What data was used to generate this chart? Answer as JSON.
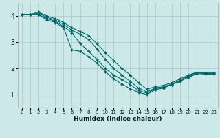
{
  "xlabel": "Humidex (Indice chaleur)",
  "ylabel": "",
  "bg_color": "#cce8e8",
  "grid_color": "#b0cccc",
  "line_color": "#006868",
  "xlim": [
    -0.5,
    23.5
  ],
  "ylim": [
    0.5,
    4.5
  ],
  "yticks": [
    1,
    2,
    3,
    4
  ],
  "xticks": [
    0,
    1,
    2,
    3,
    4,
    5,
    6,
    7,
    8,
    9,
    10,
    11,
    12,
    13,
    14,
    15,
    16,
    17,
    18,
    19,
    20,
    21,
    22,
    23
  ],
  "lines": [
    {
      "x": [
        0,
        1,
        2,
        3,
        4,
        5,
        6,
        7,
        8,
        9,
        10,
        11,
        12,
        13,
        14,
        15,
        16,
        17,
        18,
        19,
        20,
        21,
        22,
        23
      ],
      "y": [
        4.05,
        4.05,
        4.15,
        4.0,
        3.9,
        3.75,
        3.55,
        3.4,
        3.25,
        2.95,
        2.6,
        2.3,
        2.0,
        1.75,
        1.45,
        1.2,
        1.3,
        1.35,
        1.45,
        1.6,
        1.75,
        1.85,
        1.85,
        1.85
      ]
    },
    {
      "x": [
        0,
        1,
        2,
        3,
        4,
        5,
        6,
        7,
        8,
        9,
        10,
        11,
        12,
        13,
        14,
        15,
        16,
        17,
        18,
        19,
        20,
        21,
        22,
        23
      ],
      "y": [
        4.05,
        4.05,
        4.1,
        3.95,
        3.85,
        3.68,
        3.45,
        3.3,
        3.1,
        2.75,
        2.35,
        2.0,
        1.75,
        1.5,
        1.25,
        1.1,
        1.25,
        1.3,
        1.4,
        1.55,
        1.72,
        1.85,
        1.82,
        1.82
      ]
    },
    {
      "x": [
        0,
        1,
        2,
        3,
        4,
        5,
        6,
        7,
        8,
        9,
        10,
        11,
        12,
        13,
        14,
        15,
        16,
        17,
        18,
        19,
        20,
        21,
        22,
        23
      ],
      "y": [
        4.05,
        4.05,
        4.05,
        3.9,
        3.8,
        3.6,
        3.35,
        2.95,
        2.65,
        2.35,
        2.0,
        1.75,
        1.58,
        1.38,
        1.15,
        1.05,
        1.22,
        1.28,
        1.38,
        1.5,
        1.68,
        1.82,
        1.8,
        1.8
      ]
    },
    {
      "x": [
        0,
        1,
        2,
        3,
        4,
        5,
        6,
        7,
        8,
        9,
        10,
        11,
        12,
        13,
        14,
        15,
        16,
        17,
        18,
        19,
        20,
        21,
        22,
        23
      ],
      "y": [
        4.05,
        4.05,
        4.05,
        3.85,
        3.75,
        3.55,
        2.7,
        2.65,
        2.45,
        2.2,
        1.88,
        1.6,
        1.4,
        1.22,
        1.08,
        1.0,
        1.18,
        1.25,
        1.38,
        1.52,
        1.65,
        1.8,
        1.78,
        1.78
      ]
    }
  ]
}
